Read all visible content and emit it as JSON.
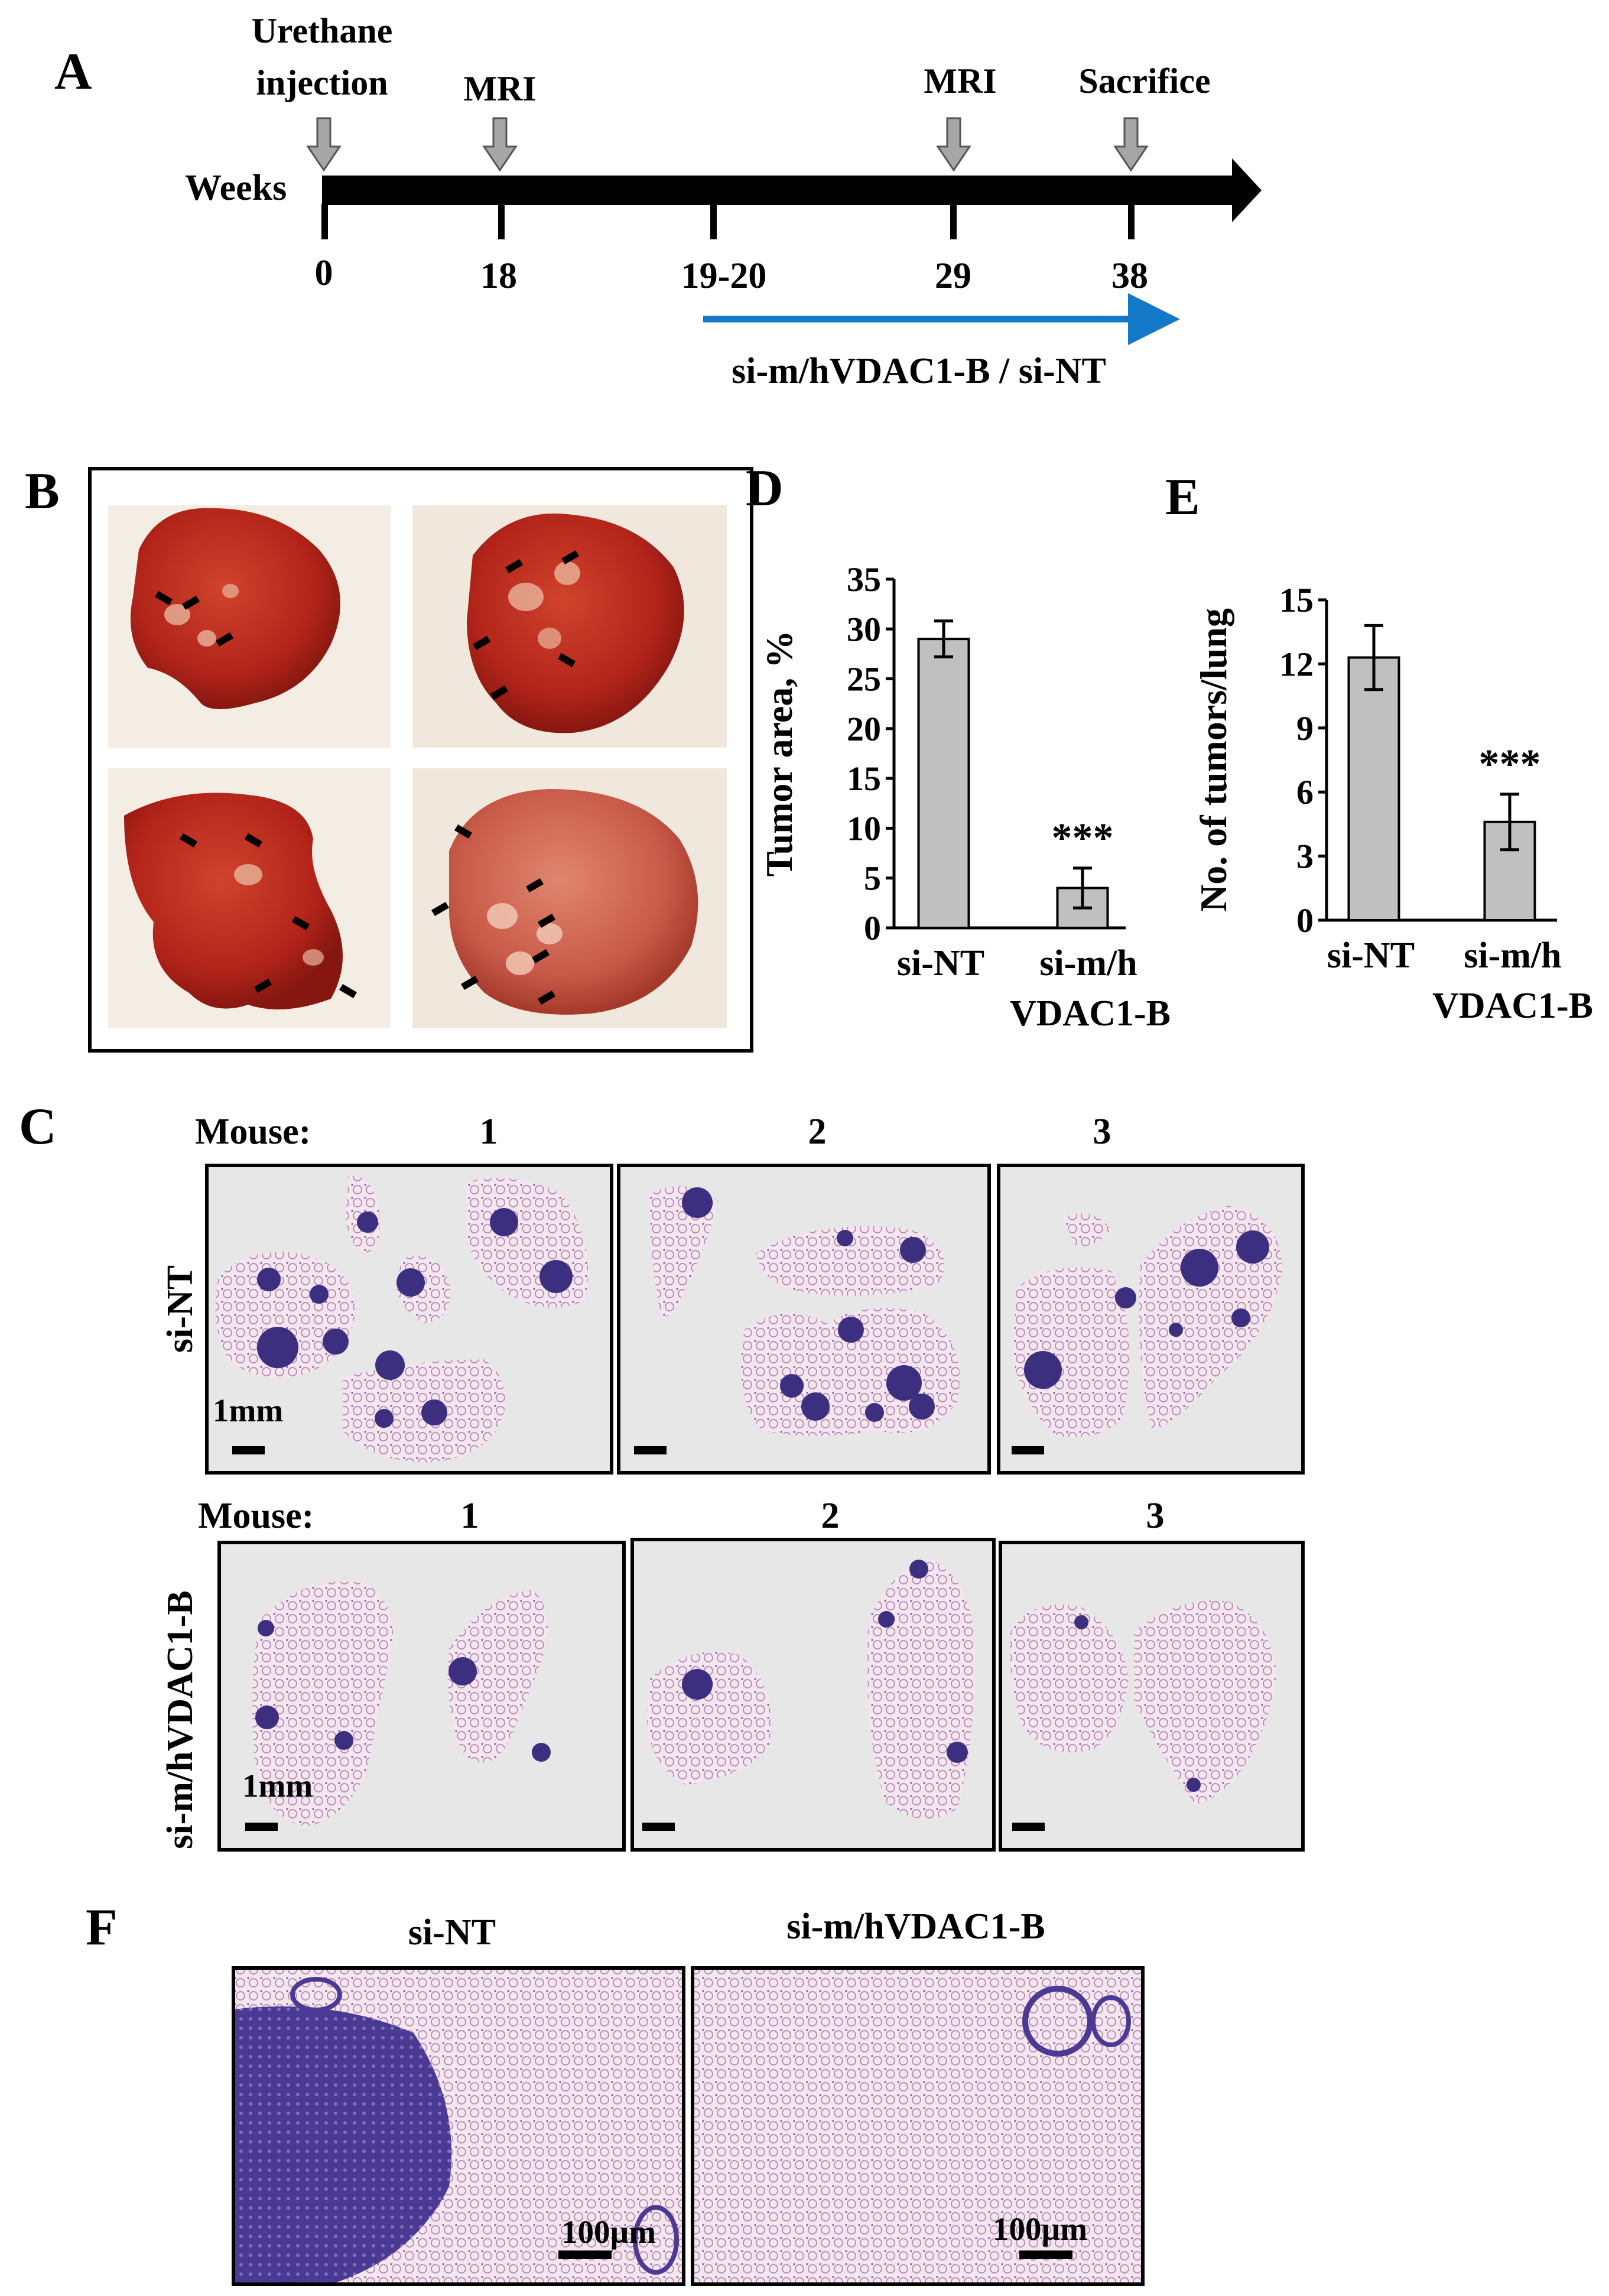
{
  "panels": {
    "a": "A",
    "b": "B",
    "c": "C",
    "d": "D",
    "e": "E",
    "f": "F"
  },
  "timeline": {
    "axis_label": "Weeks",
    "events": [
      {
        "label_lines": [
          "Urethane",
          "injection"
        ],
        "week": "0"
      },
      {
        "label_lines": [
          "MRI"
        ],
        "week": "18"
      },
      {
        "label_lines": [
          "MRI"
        ],
        "week": "29"
      },
      {
        "label_lines": [
          "Sacrifice"
        ],
        "week": "38"
      }
    ],
    "unmarked_tick": "19-20",
    "treatment_label": "si-m/hVDAC1-B / si-NT"
  },
  "photo_panel": {
    "description_colors": {
      "lung": "#b8281c",
      "lung_dark": "#8f1d14",
      "tumor": "#e9b7a0",
      "background": "#f3ece1"
    }
  },
  "histology": {
    "mouse_label": "Mouse:",
    "mouse_numbers": [
      "1",
      "2",
      "3"
    ],
    "row_labels": [
      "si-NT",
      "si-m/hVDAC1-B"
    ],
    "scale_label": "1mm",
    "colors": {
      "tissue": "#e9dde8",
      "tumor": "#3d2f80",
      "bg": "#e7e7e7"
    }
  },
  "micro": {
    "labels": [
      "si-NT",
      "si-m/hVDAC1-B"
    ],
    "scale_label": "100µm",
    "colors": {
      "dense": "#4b3a93",
      "sparse": "#f2d9e4"
    }
  },
  "chart_data": [
    {
      "type": "bar",
      "panel": "D",
      "ylabel": "Tumor area, %",
      "ylim": [
        0,
        35
      ],
      "yticks": [
        0,
        5,
        10,
        15,
        20,
        25,
        30,
        35
      ],
      "categories": [
        "si-NT",
        "si-m/h"
      ],
      "category_sublabel": "VDAC1-B",
      "values": [
        29,
        4
      ],
      "errors": [
        1.8,
        2
      ],
      "annotations": [
        "",
        "***"
      ],
      "bar_color": "#c0c0c0"
    },
    {
      "type": "bar",
      "panel": "E",
      "ylabel": "No. of tumors/lung",
      "ylim": [
        0,
        15
      ],
      "yticks": [
        0,
        3,
        6,
        9,
        12,
        15
      ],
      "categories": [
        "si-NT",
        "si-m/h"
      ],
      "category_sublabel": "VDAC1-B",
      "values": [
        12.3,
        4.6
      ],
      "errors": [
        1.5,
        1.3
      ],
      "annotations": [
        "",
        "***"
      ],
      "bar_color": "#c0c0c0"
    }
  ]
}
